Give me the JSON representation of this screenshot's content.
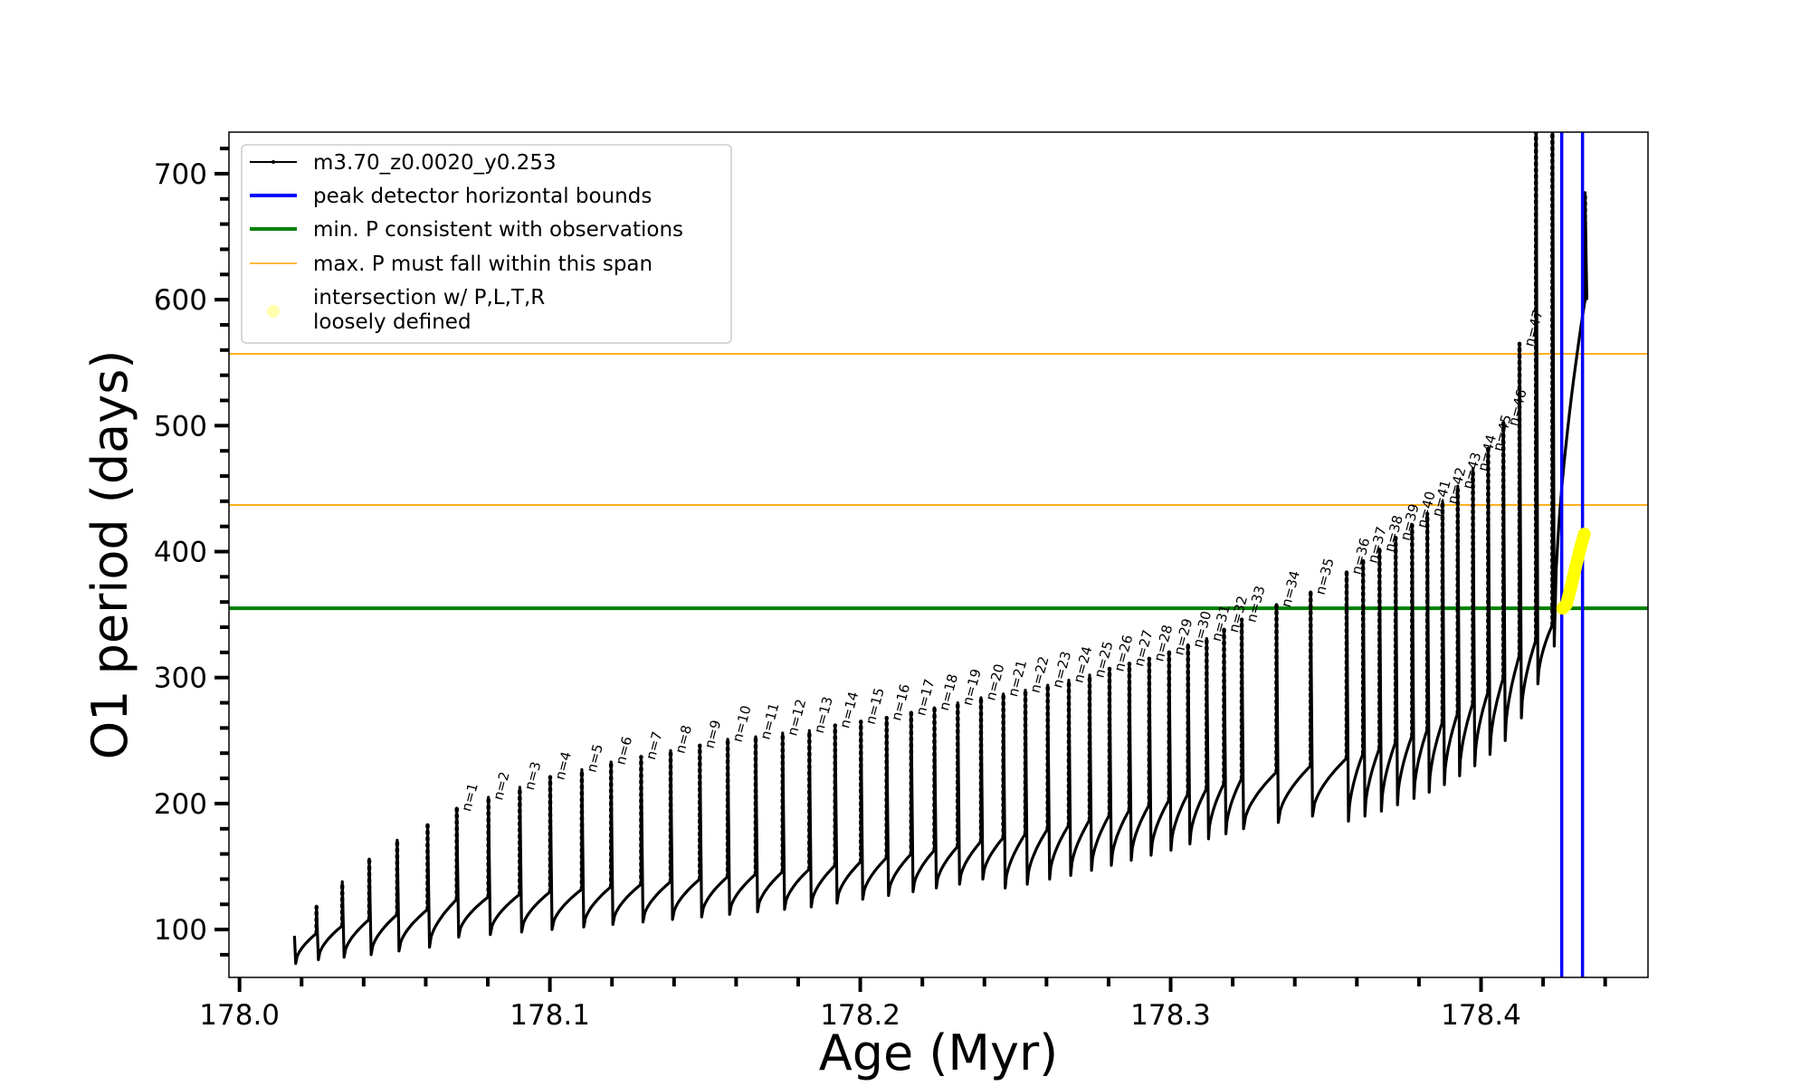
{
  "chart_data": {
    "type": "line",
    "xlabel": "Age (Myr)",
    "ylabel": "O1 period (days)",
    "xlim": [
      177.9966,
      178.4538
    ],
    "ylim": [
      62,
      733
    ],
    "xticks": [
      178.0,
      178.1,
      178.2,
      178.3,
      178.4
    ],
    "xtick_labels": [
      "178.0",
      "178.1",
      "178.2",
      "178.3",
      "178.4"
    ],
    "yticks": [
      100,
      200,
      300,
      400,
      500,
      600,
      700
    ],
    "ytick_labels": [
      "100",
      "200",
      "300",
      "400",
      "500",
      "600",
      "700"
    ],
    "x_minor_step": 0.02,
    "y_minor_step": 20,
    "grid": false,
    "legend_placement": "top-left",
    "legend": [
      {
        "label": "m3.70_z0.0020_y0.253",
        "color": "#000000",
        "style": "line-dot"
      },
      {
        "label": "peak detector horizontal bounds",
        "color": "#0000ff",
        "style": "thick-line"
      },
      {
        "label": "min. P consistent with observations",
        "color": "#008000",
        "style": "thick-line"
      },
      {
        "label": "max. P must fall within this span",
        "color": "#ffa500",
        "style": "thin-line"
      },
      {
        "label": "intersection w/ P,L,T,R\nloosely defined",
        "label_lines": [
          "intersection w/ P,L,T,R",
          "loosely defined"
        ],
        "color": "#ffff00",
        "style": "marker"
      }
    ],
    "series_name": "m3.70_z0.0020_y0.253",
    "start": {
      "age": 178.0177,
      "period": 95,
      "dip": 73
    },
    "cycles": {
      "label": [
        "",
        "",
        "",
        "",
        "",
        "n=1",
        "n=2",
        "n=3",
        "n=4",
        "n=5",
        "n=6",
        "n=7",
        "n=8",
        "n=9",
        "n=10",
        "n=11",
        "n=12",
        "n=13",
        "n=14",
        "n=15",
        "n=16",
        "n=17",
        "n=18",
        "n=19",
        "n=20",
        "n=21",
        "n=22",
        "n=23",
        "n=24",
        "n=25",
        "n=26",
        "n=27",
        "n=28",
        "n=29",
        "n=30",
        "n=31",
        "n=32",
        "n=33",
        "n=34",
        "n=35",
        "n=36",
        "n=37",
        "n=38",
        "n=39",
        "n=40",
        "n=41",
        "n=42",
        "n=43",
        "n=44",
        "n=45",
        "n=46",
        "n=47",
        "",
        "",
        ""
      ],
      "age": [
        178.0248,
        178.0331,
        178.0418,
        178.0508,
        178.0606,
        178.07,
        178.0802,
        178.0903,
        178.1001,
        178.1103,
        178.1197,
        178.1294,
        178.1389,
        178.1483,
        178.1573,
        178.1663,
        178.175,
        178.1836,
        178.1919,
        178.2002,
        178.2085,
        178.2164,
        178.2239,
        178.2314,
        178.2389,
        178.2461,
        178.2532,
        178.2604,
        178.2672,
        178.2739,
        178.2803,
        178.2867,
        178.2931,
        178.2995,
        178.3056,
        178.3116,
        178.3172,
        178.3229,
        178.3341,
        178.3451,
        178.3567,
        178.362,
        178.3673,
        178.3725,
        178.3778,
        178.3827,
        178.3876,
        178.3925,
        178.3974,
        178.4023,
        178.4072,
        178.4124,
        178.4177,
        178.423,
        178.4335
      ],
      "peak": [
        118,
        138,
        156,
        171,
        183,
        196,
        205,
        213,
        221,
        227,
        233,
        237,
        242,
        246,
        251,
        253,
        256,
        258,
        262,
        265,
        268,
        272,
        276,
        280,
        284,
        287,
        290,
        294,
        298,
        302,
        307,
        311,
        315,
        320,
        326,
        331,
        338,
        346,
        358,
        368,
        384,
        393,
        402,
        411,
        421,
        430,
        440,
        452,
        466,
        482,
        502,
        565,
        800,
        800,
        685
      ],
      "base": [
        97,
        103,
        108,
        112,
        116,
        124,
        126,
        128,
        130,
        132,
        134,
        136,
        138,
        140,
        142,
        144,
        146,
        148,
        151,
        154,
        157,
        160,
        163,
        166,
        170,
        173,
        176,
        180,
        183,
        187,
        191,
        195,
        199,
        203,
        208,
        212,
        216,
        220,
        225,
        230,
        236,
        240,
        244,
        249,
        254,
        259,
        265,
        272,
        280,
        289,
        300,
        318,
        330,
        342,
        600
      ],
      "dip": [
        76,
        78,
        80,
        83,
        86,
        94,
        96,
        98,
        100,
        102,
        104,
        106,
        108,
        110,
        112,
        114,
        116,
        118,
        121,
        124,
        127,
        130,
        133,
        136,
        140,
        133,
        136,
        140,
        143,
        147,
        151,
        155,
        159,
        163,
        168,
        172,
        176,
        180,
        185,
        190,
        186,
        190,
        194,
        199,
        204,
        209,
        215,
        222,
        230,
        239,
        250,
        268,
        295,
        325,
        600
      ]
    },
    "vertical_lines": [
      {
        "age": 178.426,
        "color": "#0000ff"
      },
      {
        "age": 178.4327,
        "color": "#0000ff"
      }
    ],
    "horizontal_lines": [
      {
        "period": 355,
        "color": "#008000"
      },
      {
        "period": 437,
        "color": "#ffa500"
      },
      {
        "period": 557,
        "color": "#ffa500"
      }
    ],
    "intersection": {
      "color": "#ffff00",
      "ages": [
        178.4263,
        178.4275,
        178.429,
        178.4305,
        178.432,
        178.4333
      ],
      "periods": [
        355,
        358,
        372,
        388,
        403,
        414
      ]
    }
  }
}
